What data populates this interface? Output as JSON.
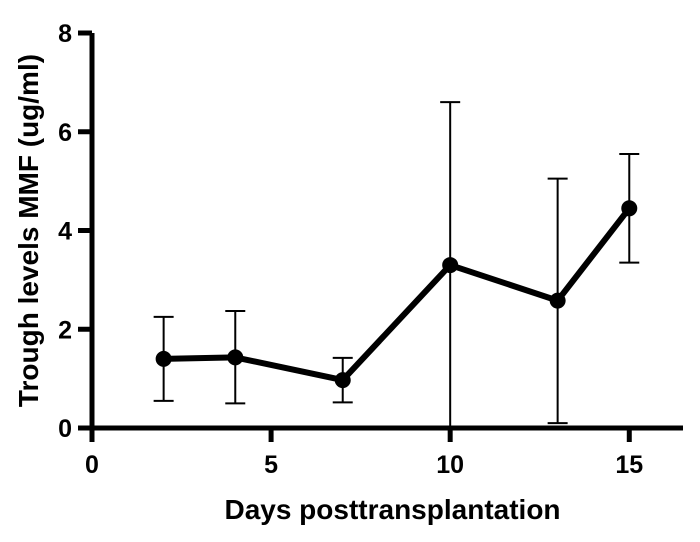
{
  "chart_data": {
    "type": "line",
    "title": "",
    "xlabel": "Days posttransplantation",
    "ylabel": "Trough levels MMF (ug/ml)",
    "xlim": [
      0,
      16.5
    ],
    "ylim": [
      0,
      8
    ],
    "xticks": [
      0,
      5,
      10,
      15
    ],
    "yticks": [
      0,
      2,
      4,
      6,
      8
    ],
    "grid": false,
    "legend": "none",
    "colors": {
      "line": "#000000",
      "axis": "#000000"
    },
    "series": [
      {
        "name": "MMF trough level",
        "x": [
          2,
          4,
          7,
          10,
          13,
          15
        ],
        "y": [
          1.4,
          1.43,
          0.97,
          3.3,
          2.58,
          4.45
        ],
        "error_low": [
          0.55,
          0.5,
          0.52,
          0.0,
          0.1,
          3.35
        ],
        "error_high": [
          2.25,
          2.37,
          1.42,
          6.6,
          5.05,
          5.55
        ]
      }
    ]
  }
}
